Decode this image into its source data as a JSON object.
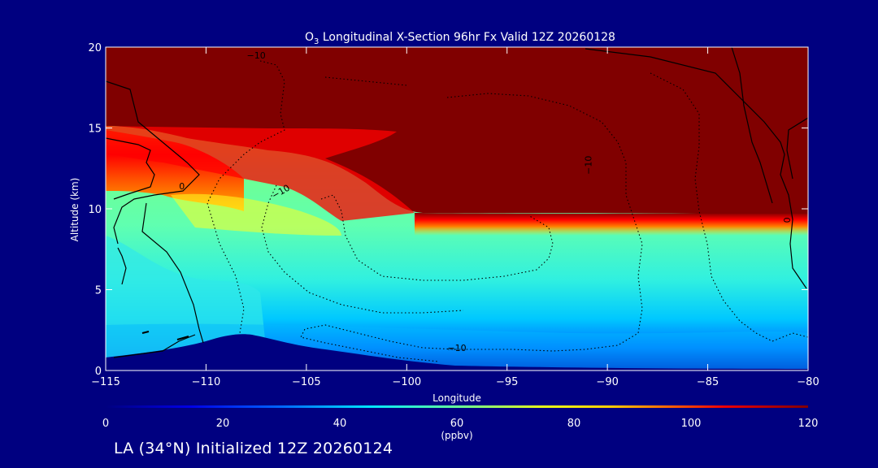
{
  "chart_data": {
    "type": "heatmap",
    "title_main": "O",
    "title_sub": "3",
    "title_rest": " Longitudinal X-Section 96hr  Fx Valid 12Z 20260128",
    "xlabel": "Longitude",
    "ylabel": "Altitude (km)",
    "xlim": [
      -115,
      -80
    ],
    "ylim": [
      0,
      20
    ],
    "xticks": [
      -115,
      -110,
      -105,
      -100,
      -95,
      -90,
      -85,
      -80
    ],
    "xtick_labels": [
      "−115",
      "−110",
      "−105",
      "−100",
      "−95",
      "−90",
      "−85",
      "−80"
    ],
    "yticks": [
      0,
      5,
      10,
      15,
      20
    ],
    "ytick_labels": [
      "0",
      "5",
      "10",
      "15",
      "20"
    ],
    "colorbar": {
      "min": 0,
      "max": 120,
      "ticks": [
        0,
        20,
        40,
        60,
        80,
        100,
        120
      ],
      "tick_labels": [
        "0",
        "20",
        "40",
        "60",
        "80",
        "100",
        "120"
      ],
      "unit": "(ppbv)"
    },
    "contour_labels": [
      {
        "text": "−10",
        "x": -107.5,
        "y": 19.3,
        "rotate": 0
      },
      {
        "text": "0",
        "x": -111.2,
        "y": 11.2,
        "rotate": 0
      },
      {
        "text": "−10",
        "x": -106.2,
        "y": 10.9,
        "rotate": -30
      },
      {
        "text": "−10",
        "x": -97.5,
        "y": 1.2,
        "rotate": 0
      },
      {
        "text": "−10",
        "x": -90.8,
        "y": 12.7,
        "rotate": -90
      },
      {
        "text": "0",
        "x": -80.9,
        "y": 9.3,
        "rotate": -90
      }
    ],
    "fields": {
      "stratosphere_ppbv": 120,
      "tropopause_km_west": 15,
      "tropopause_km_east": 9.5,
      "upper_troposphere_ppbv": [
        70,
        90
      ],
      "mid_troposphere_ppbv": [
        40,
        60
      ],
      "boundary_layer_ppbv": [
        15,
        40
      ]
    }
  },
  "footer": "LA (34°N) Initialized 12Z 20260124"
}
